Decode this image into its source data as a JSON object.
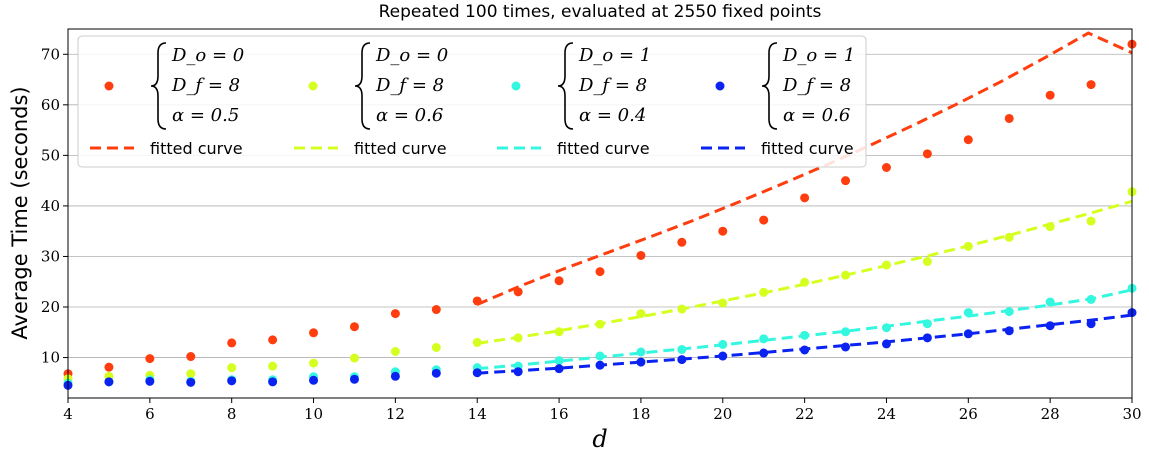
{
  "chart_data": {
    "type": "scatter",
    "title": "Repeated 100 times, evaluated at 2550 fixed points",
    "xlabel": "d",
    "ylabel": "Average Time (seconds)",
    "xlim": [
      4,
      30
    ],
    "ylim": [
      2,
      75
    ],
    "xticks": [
      4,
      6,
      8,
      10,
      12,
      14,
      16,
      18,
      20,
      22,
      24,
      26,
      28,
      30
    ],
    "yticks": [
      10,
      20,
      30,
      40,
      50,
      60,
      70
    ],
    "grid": "horizontal",
    "legend_position": "top-left",
    "fit_label": "fitted curve",
    "series": [
      {
        "legend": [
          "D_o = 0",
          "D_f = 8",
          "α = 0.5"
        ],
        "color": "#ff3d0e",
        "x": [
          4,
          5,
          6,
          7,
          8,
          9,
          10,
          11,
          12,
          13,
          14,
          15,
          16,
          17,
          18,
          19,
          20,
          21,
          22,
          23,
          24,
          25,
          26,
          27,
          28,
          29,
          30
        ],
        "y": [
          6.8,
          8.1,
          9.8,
          10.2,
          12.9,
          13.5,
          14.9,
          16.1,
          18.7,
          19.5,
          21.2,
          23.0,
          25.2,
          27.0,
          30.2,
          32.8,
          35.0,
          37.2,
          41.6,
          45.0,
          47.6,
          50.3,
          53.1,
          57.3,
          61.9,
          64.0,
          72.0
        ],
        "fit_x": [
          14,
          30
        ],
        "fit_y": [
          20.5,
          24.2,
          27.6,
          30.8,
          34.0,
          37.3,
          40.8,
          44.4,
          48.1,
          52.0,
          56.0,
          60.2,
          64.6,
          69.3,
          74.2,
          70.3
        ]
      },
      {
        "legend": [
          "D_o = 0",
          "D_f = 8",
          "α = 0.6"
        ],
        "color": "#d4ff1f",
        "x": [
          4,
          5,
          6,
          7,
          8,
          9,
          10,
          11,
          12,
          13,
          14,
          15,
          16,
          17,
          18,
          19,
          20,
          21,
          22,
          23,
          24,
          25,
          26,
          27,
          28,
          29,
          30
        ],
        "y": [
          5.8,
          6.3,
          6.5,
          6.8,
          8.0,
          8.3,
          8.9,
          9.9,
          11.2,
          12.0,
          13.0,
          13.9,
          15.1,
          16.6,
          18.7,
          19.6,
          20.8,
          22.9,
          24.9,
          26.3,
          28.3,
          29.0,
          32.0,
          33.8,
          35.9,
          37.0,
          42.8
        ],
        "fit_x": [
          14,
          30
        ],
        "fit_y": [
          12.8,
          14.0,
          15.3,
          16.7,
          18.1,
          19.6,
          21.2,
          22.8,
          24.5,
          26.3,
          28.2,
          30.1,
          32.1,
          34.2,
          36.4,
          38.6,
          40.9
        ]
      },
      {
        "legend": [
          "D_o = 1",
          "D_f = 8",
          "α = 0.4"
        ],
        "color": "#34f7e0",
        "x": [
          4,
          5,
          6,
          7,
          8,
          9,
          10,
          11,
          12,
          13,
          14,
          15,
          16,
          17,
          18,
          19,
          20,
          21,
          22,
          23,
          24,
          25,
          26,
          27,
          28,
          29,
          30
        ],
        "y": [
          4.9,
          5.2,
          5.6,
          5.3,
          5.6,
          5.6,
          6.2,
          6.2,
          7.2,
          7.6,
          8.0,
          8.3,
          9.4,
          10.3,
          11.1,
          11.6,
          12.6,
          13.7,
          14.4,
          15.1,
          15.9,
          16.7,
          18.9,
          19.1,
          21.0,
          21.5,
          23.7
        ],
        "fit_x": [
          14,
          30
        ],
        "fit_y": [
          7.8,
          8.5,
          9.3,
          10.1,
          10.9,
          11.7,
          12.5,
          13.4,
          14.3,
          15.2,
          16.2,
          17.2,
          18.2,
          19.3,
          20.4,
          21.6,
          23.4
        ]
      },
      {
        "legend": [
          "D_o = 1",
          "D_f = 8",
          "α = 0.6"
        ],
        "color": "#0a23f0",
        "x": [
          4,
          5,
          6,
          7,
          8,
          9,
          10,
          11,
          12,
          13,
          14,
          15,
          16,
          17,
          18,
          19,
          20,
          21,
          22,
          23,
          24,
          25,
          26,
          27,
          28,
          29,
          30
        ],
        "y": [
          4.5,
          5.2,
          5.3,
          5.1,
          5.4,
          5.2,
          5.5,
          5.7,
          6.3,
          6.9,
          7.0,
          7.2,
          7.8,
          8.5,
          9.1,
          9.6,
          10.3,
          10.9,
          11.5,
          12.1,
          12.7,
          13.9,
          14.7,
          15.3,
          16.3,
          16.7,
          18.9
        ],
        "fit_x": [
          14,
          30
        ],
        "fit_y": [
          6.9,
          7.4,
          7.9,
          8.5,
          9.1,
          9.7,
          10.3,
          11.0,
          11.7,
          12.4,
          13.1,
          13.9,
          14.7,
          15.6,
          16.5,
          17.4,
          18.4
        ]
      }
    ]
  }
}
